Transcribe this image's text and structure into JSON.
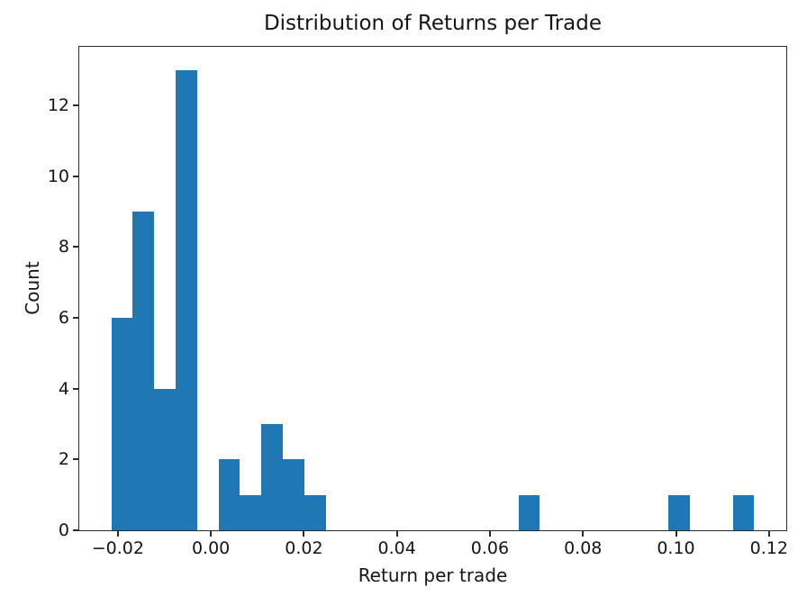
{
  "chart_data": {
    "type": "bar",
    "subtype": "histogram",
    "title": "Distribution of Returns per Trade",
    "xlabel": "Return per trade",
    "ylabel": "Count",
    "bar_color": "#1f77b4",
    "axis_color": "#2b2b2b",
    "bins": 30,
    "bin_start": -0.02139,
    "bin_width": 0.0046067,
    "counts": [
      6,
      9,
      4,
      13,
      0,
      2,
      1,
      3,
      2,
      1,
      0,
      0,
      0,
      0,
      0,
      0,
      0,
      0,
      0,
      1,
      0,
      0,
      0,
      0,
      0,
      0,
      1,
      0,
      0,
      1
    ],
    "xlim": [
      -0.0283,
      0.12372
    ],
    "ylim": [
      0,
      13.65
    ],
    "x_ticks": [
      -0.02,
      0.0,
      0.02,
      0.04,
      0.06,
      0.08,
      0.1,
      0.12
    ],
    "x_tick_labels": [
      "−0.02",
      "0.00",
      "0.02",
      "0.04",
      "0.06",
      "0.08",
      "0.10",
      "0.12"
    ],
    "y_ticks": [
      0,
      2,
      4,
      6,
      8,
      10,
      12
    ],
    "y_tick_labels": [
      "0",
      "2",
      "4",
      "6",
      "8",
      "10",
      "12"
    ],
    "grid": false,
    "legend": null
  }
}
